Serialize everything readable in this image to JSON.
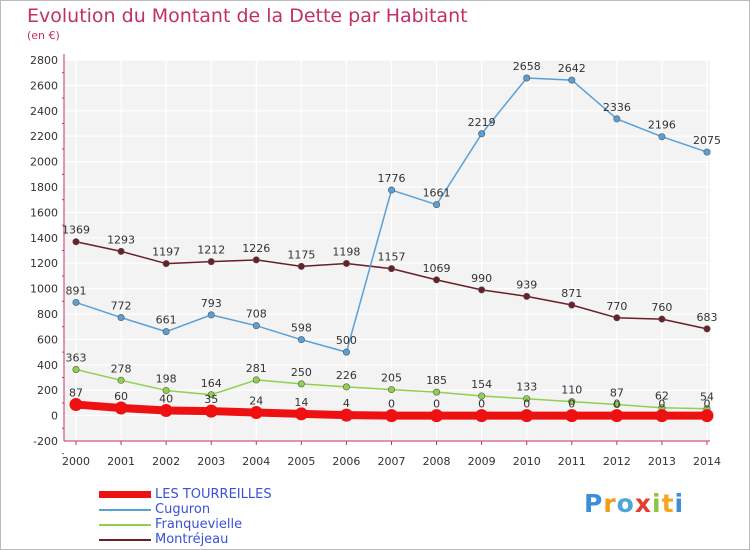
{
  "title": "Evolution du Montant de la Dette par Habitant",
  "unit": "(en €)",
  "brand": [
    "P",
    "r",
    "o",
    "x",
    "i",
    "t",
    "i"
  ],
  "brand_colors": [
    "#3b8fd6",
    "#f29c1f",
    "#4aa7d8",
    "#e63c2f",
    "#8cc63f",
    "#f5a623",
    "#3b8fd6"
  ],
  "chart_data": {
    "type": "line",
    "x": [
      "2000",
      "2001",
      "2002",
      "2003",
      "2004",
      "2005",
      "2006",
      "2007",
      "2008",
      "2009",
      "2010",
      "2011",
      "2012",
      "2013",
      "2014"
    ],
    "ylim": [
      -200,
      2800
    ],
    "yticks": [
      "-200",
      "0",
      "200",
      "400",
      "600",
      "800",
      "1000",
      "1200",
      "1400",
      "1600",
      "1800",
      "2000",
      "2200",
      "2400",
      "2600",
      "2800"
    ],
    "grid": true,
    "legend_position": "bottom-left",
    "series": [
      {
        "name": "Montréjeau",
        "color": "#6b1f28",
        "values": [
          1369,
          1293,
          1197,
          1212,
          1226,
          1175,
          1198,
          1157,
          1069,
          990,
          939,
          871,
          770,
          760,
          683
        ],
        "labels": [
          "1369",
          "1293",
          "1197",
          "1212",
          "1226",
          "1175",
          "1198",
          "1157",
          "1069",
          "990",
          "939",
          "871",
          "770",
          "760",
          "683"
        ]
      },
      {
        "name": "Cuguron",
        "color": "#5aa0d8",
        "values": [
          891,
          772,
          661,
          793,
          708,
          598,
          500,
          1776,
          1661,
          2219,
          2658,
          2642,
          2336,
          2196,
          2075
        ],
        "labels": [
          "891",
          "772",
          "661",
          "793",
          "708",
          "598",
          "500",
          "1776",
          "1661",
          "2219",
          "2658",
          "2642",
          "2336",
          "2196",
          "2075"
        ]
      },
      {
        "name": "Franquevielle",
        "color": "#8fd14f",
        "values": [
          363,
          278,
          198,
          164,
          281,
          250,
          226,
          205,
          185,
          154,
          133,
          110,
          87,
          62,
          54
        ],
        "labels": [
          "363",
          "278",
          "198",
          "164",
          "281",
          "250",
          "226",
          "205",
          "185",
          "154",
          "133",
          "110",
          "87",
          "62",
          "54"
        ]
      },
      {
        "name": "LES TOURREILLES",
        "color": "#ee1111",
        "values": [
          87,
          60,
          40,
          35,
          24,
          14,
          4,
          0,
          0,
          0,
          0,
          0,
          0,
          0,
          0
        ],
        "labels": [
          "87",
          "60",
          "40",
          "35",
          "24",
          "14",
          "4",
          "0",
          "0",
          "0",
          "0",
          "0",
          "0",
          "0",
          "0"
        ]
      }
    ]
  },
  "legend": [
    {
      "label": "LES TOURREILLES",
      "color": "#ee1111"
    },
    {
      "label": "Cuguron",
      "color": "#5aa0d8"
    },
    {
      "label": "Franquevielle",
      "color": "#8fd14f"
    },
    {
      "label": "Montréjeau",
      "color": "#6b1f28"
    }
  ]
}
